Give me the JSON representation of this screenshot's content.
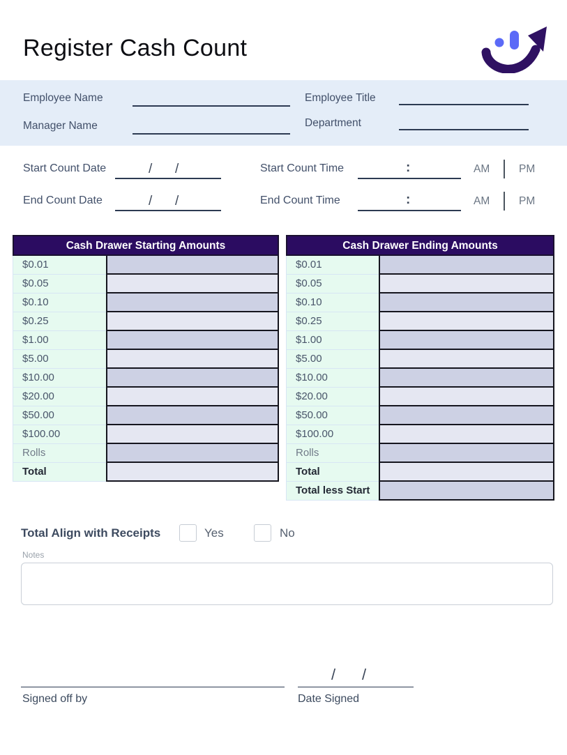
{
  "header": {
    "title": "Register Cash Count",
    "logo_icon": "smile-arrow-logo"
  },
  "employee_band": {
    "fields": [
      {
        "label": "Employee Name"
      },
      {
        "label": "Employee Title"
      },
      {
        "label": "Manager Name"
      },
      {
        "label": "Department"
      }
    ]
  },
  "datetime": {
    "date_separator": "/",
    "time_separator": ":",
    "am_label": "AM",
    "pm_label": "PM",
    "rows": [
      {
        "date_label": "Start Count Date",
        "time_label": "Start Count Time"
      },
      {
        "date_label": "End Count Date",
        "time_label": "End Count Time"
      }
    ]
  },
  "tables": [
    {
      "title": "Cash Drawer Starting Amounts",
      "rows": [
        {
          "label": "$0.01"
        },
        {
          "label": "$0.05"
        },
        {
          "label": "$0.10"
        },
        {
          "label": "$0.25"
        },
        {
          "label": "$1.00"
        },
        {
          "label": "$5.00"
        },
        {
          "label": "$10.00"
        },
        {
          "label": "$20.00"
        },
        {
          "label": "$50.00"
        },
        {
          "label": "$100.00"
        },
        {
          "label": "Rolls",
          "muted": true
        },
        {
          "label": "Total",
          "bold": true
        }
      ]
    },
    {
      "title": "Cash Drawer Ending Amounts",
      "rows": [
        {
          "label": "$0.01"
        },
        {
          "label": "$0.05"
        },
        {
          "label": "$0.10"
        },
        {
          "label": "$0.25"
        },
        {
          "label": "$1.00"
        },
        {
          "label": "$5.00"
        },
        {
          "label": "$10.00"
        },
        {
          "label": "$20.00"
        },
        {
          "label": "$50.00"
        },
        {
          "label": "$100.00"
        },
        {
          "label": "Rolls",
          "muted": true
        },
        {
          "label": "Total",
          "bold": true
        },
        {
          "label": "Total less Start",
          "bold": true
        }
      ]
    }
  ],
  "receipts": {
    "label": "Total Align with Receipts",
    "options": [
      {
        "label": "Yes"
      },
      {
        "label": "No"
      }
    ]
  },
  "notes_label": "Notes",
  "signature": {
    "signed_label": "Signed off by",
    "date_label": "Date Signed",
    "separator": "/"
  },
  "colors": {
    "header_bg": "#2b0c61",
    "band_bg": "#e4edf8",
    "mint": "#e6faf0",
    "cell_dark": "#cdd1e4",
    "cell_light": "#e5e7f2",
    "logo_indigo": "#2f1162",
    "logo_periwinkle": "#5b6af7"
  }
}
